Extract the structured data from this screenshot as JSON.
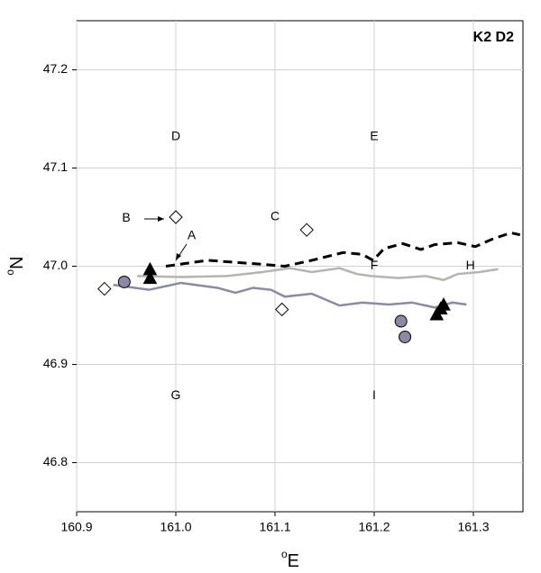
{
  "chart_data": {
    "type": "line",
    "title": "K2 D2",
    "xlabel": {
      "sup": "o",
      "text": "E"
    },
    "ylabel": {
      "sup": "o",
      "text": "N"
    },
    "xlim": [
      160.9,
      161.35
    ],
    "ylim": [
      46.75,
      47.25
    ],
    "xticks": [
      160.9,
      {
        "value": 161,
        "label": "161.0"
      },
      161.1,
      161.2,
      161.3
    ],
    "yticks": [
      46.8,
      46.9,
      {
        "value": 47,
        "label": "47.0"
      },
      47.1,
      47.2
    ],
    "grid": true,
    "lines": [
      {
        "color": "#000000",
        "dashed": true,
        "x": [
          160.99,
          161.032,
          161.087,
          161.11,
          161.137,
          161.169,
          161.188,
          161.199,
          161.21,
          161.229,
          161.247,
          161.261,
          161.284,
          161.302,
          161.32,
          161.338,
          161.347
        ],
        "y": [
          47.0,
          47.006,
          47.002,
          47.0,
          47.006,
          47.014,
          47.012,
          47.006,
          47.018,
          47.023,
          47.017,
          47.022,
          47.024,
          47.02,
          47.028,
          47.034,
          47.032
        ]
      },
      {
        "color": "#b5b5ab",
        "dashed": false,
        "x": [
          160.961,
          161.005,
          161.051,
          161.087,
          161.115,
          161.137,
          161.165,
          161.183,
          161.197,
          161.224,
          161.252,
          161.27,
          161.284,
          161.306,
          161.325
        ],
        "y": [
          46.99,
          46.989,
          46.99,
          46.994,
          46.998,
          46.994,
          46.998,
          46.992,
          46.99,
          46.988,
          46.99,
          46.986,
          46.992,
          46.994,
          46.997
        ]
      },
      {
        "color": "#8a8aa6",
        "dashed": false,
        "x": [
          160.937,
          160.973,
          161.005,
          161.042,
          161.06,
          161.078,
          161.096,
          161.11,
          161.137,
          161.165,
          161.188,
          161.215,
          161.238,
          161.261,
          161.279,
          161.293
        ],
        "y": [
          46.981,
          46.976,
          46.983,
          46.978,
          46.973,
          46.978,
          46.976,
          46.969,
          46.972,
          46.96,
          46.963,
          46.961,
          46.963,
          46.958,
          46.963,
          46.961
        ]
      }
    ],
    "markers": [
      {
        "shape": "triangle",
        "color": "#000000",
        "x": [
          160.974,
          160.974,
          161.263,
          161.267,
          161.27
        ],
        "y": [
          46.996,
          46.987,
          46.95,
          46.956,
          46.96
        ]
      },
      {
        "shape": "circle",
        "color": "#8a8aa6",
        "x": [
          160.948,
          161.227,
          161.231
        ],
        "y": [
          46.984,
          46.944,
          46.928
        ]
      },
      {
        "shape": "diamond",
        "color": "#ffffff",
        "x": [
          160.928,
          161.0,
          161.132,
          161.107
        ],
        "y": [
          46.977,
          47.05,
          47.037,
          46.956
        ]
      }
    ],
    "annotations": [
      {
        "text": "D",
        "x": 161.0,
        "y": 47.132
      },
      {
        "text": "E",
        "x": 161.2,
        "y": 47.132
      },
      {
        "text": "C",
        "x": 161.1,
        "y": 47.05
      },
      {
        "text": "B",
        "x": 160.95,
        "y": 47.049
      },
      {
        "text": "A",
        "x": 161.016,
        "y": 47.031
      },
      {
        "text": "F",
        "x": 161.2,
        "y": 47.0
      },
      {
        "text": "H",
        "x": 161.297,
        "y": 47.0
      },
      {
        "text": "G",
        "x": 161.0,
        "y": 46.868
      },
      {
        "text": "I",
        "x": 161.2,
        "y": 46.868
      }
    ]
  }
}
